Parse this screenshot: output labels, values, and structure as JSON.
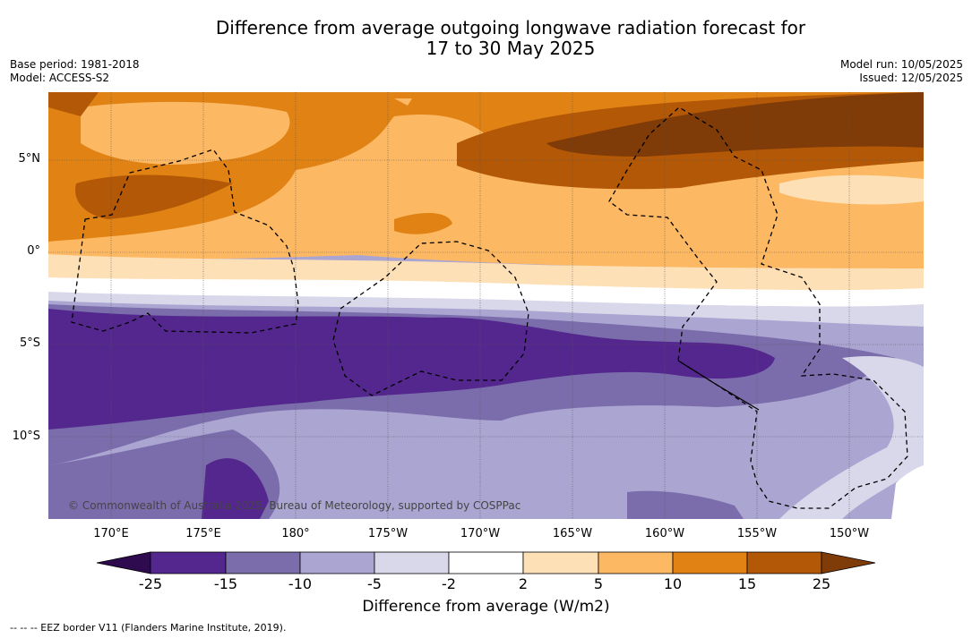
{
  "title": {
    "line1": "Difference from average outgoing longwave radiation forecast for",
    "line2": "17 to 30 May 2025"
  },
  "meta": {
    "base_period": "Base period: 1981-2018",
    "model": "Model: ACCESS-S2",
    "model_run": "Model run: 10/05/2025",
    "issued": "Issued: 12/05/2025"
  },
  "map": {
    "lon_ticks": [
      "170°E",
      "175°E",
      "180°",
      "175°W",
      "170°W",
      "165°W",
      "160°W",
      "155°W",
      "150°W"
    ],
    "lat_ticks": [
      "5°N",
      "0°",
      "5°S",
      "10°S"
    ],
    "copyright": "© Commonwealth of Australia 2025, Bureau of Meteorology, supported by COSPPac"
  },
  "colorbar": {
    "labels": [
      "-25",
      "-15",
      "-10",
      "-5",
      "-2",
      "2",
      "5",
      "10",
      "15",
      "25"
    ],
    "colors": {
      "under": "#2e0a4f",
      "bins": [
        "#54278f",
        "#7b6dab",
        "#aba5d2",
        "#d9d8eb",
        "#ffffff",
        "#fee0b6",
        "#fdb863",
        "#e08214",
        "#b35806"
      ],
      "over": "#7f3b08"
    },
    "title": "Difference from average (W/m2)"
  },
  "legend_note": "--  --  -- EEZ border V11 (Flanders Marine Institute, 2019)."
}
